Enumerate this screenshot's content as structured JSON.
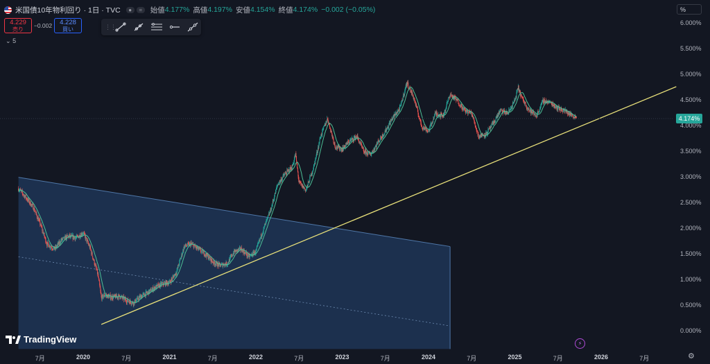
{
  "header": {
    "title": "米国債10年物利回り · 1日 · TVC",
    "open_label": "始値",
    "open_value": "4.177%",
    "high_label": "高値",
    "high_value": "4.197%",
    "low_label": "安値",
    "low_value": "4.154%",
    "close_label": "終値",
    "close_value": "4.174%",
    "change": "−0.002 (−0.05%)"
  },
  "trade": {
    "sell_price": "4.229",
    "sell_label": "売り",
    "spread": "−0.002",
    "buy_price": "4.228",
    "buy_label": "買い"
  },
  "indicators_toggle": "5",
  "toolbar": {
    "tools": [
      "trend-line-icon",
      "ray-icon",
      "parallel-channel-icon",
      "horizontal-ray-icon",
      "extended-line-icon"
    ]
  },
  "axis_menu": "%",
  "current_price_badge": "4.174%",
  "branding": "TradingView",
  "colors": {
    "background": "#131722",
    "candle_up": "#26a69a",
    "candle_down": "#ef5350",
    "moving_average": "#4dbf96",
    "trend_line": "#e8e07a",
    "channel_fill": "#1f3556",
    "channel_edge": "#4f77a8",
    "price_badge": "#26a69a"
  },
  "chart_data": {
    "type": "line",
    "title": "米国債10年物利回り · 1日 · TVC",
    "y_axis": {
      "unit": "%",
      "range": [
        -0.2,
        6.15
      ],
      "ticks": [
        "6.000%",
        "5.500%",
        "5.000%",
        "4.500%",
        "4.000%",
        "3.500%",
        "3.000%",
        "2.500%",
        "2.000%",
        "1.500%",
        "1.000%",
        "0.500%",
        "0.000%"
      ]
    },
    "x_axis": {
      "ticks": [
        "7月",
        "2020",
        "7月",
        "2021",
        "7月",
        "2022",
        "7月",
        "2023",
        "7月",
        "2024",
        "7月",
        "2025",
        "7月",
        "2026",
        "7月"
      ],
      "range": [
        2019.25,
        2026.9
      ]
    },
    "series": [
      {
        "x": [
          2019.25,
          2019.33,
          2019.42,
          2019.5,
          2019.58,
          2019.67,
          2019.75,
          2019.83,
          2019.92,
          2020.0,
          2020.08,
          2020.17,
          2020.21,
          2020.25,
          2020.33,
          2020.42,
          2020.5,
          2020.58,
          2020.67,
          2020.75,
          2020.83,
          2020.92,
          2021.0,
          2021.08,
          2021.17,
          2021.25,
          2021.33,
          2021.42,
          2021.5,
          2021.58,
          2021.67,
          2021.75,
          2021.83,
          2021.92,
          2022.0,
          2022.08,
          2022.17,
          2022.25,
          2022.33,
          2022.42,
          2022.46,
          2022.5,
          2022.58,
          2022.67,
          2022.75,
          2022.83,
          2022.92,
          2023.0,
          2023.08,
          2023.17,
          2023.25,
          2023.33,
          2023.42,
          2023.5,
          2023.58,
          2023.67,
          2023.75,
          2023.83,
          2023.92,
          2024.0,
          2024.08,
          2024.17,
          2024.25,
          2024.33,
          2024.42,
          2024.5,
          2024.58,
          2024.67,
          2024.75,
          2024.83,
          2024.92,
          2025.0,
          2025.04,
          2025.08,
          2025.17,
          2025.25,
          2025.33,
          2025.42,
          2025.5,
          2025.58,
          2025.67,
          2025.72
        ],
        "y": [
          2.78,
          2.62,
          2.42,
          2.1,
          1.7,
          1.6,
          1.78,
          1.85,
          1.82,
          1.92,
          1.62,
          1.1,
          0.65,
          0.7,
          0.66,
          0.68,
          0.6,
          0.55,
          0.68,
          0.75,
          0.85,
          0.92,
          0.95,
          1.15,
          1.65,
          1.7,
          1.6,
          1.5,
          1.35,
          1.28,
          1.32,
          1.55,
          1.6,
          1.45,
          1.55,
          1.95,
          2.35,
          2.85,
          3.05,
          3.2,
          3.45,
          2.9,
          2.75,
          3.2,
          3.8,
          4.15,
          3.6,
          3.55,
          3.7,
          3.8,
          3.5,
          3.45,
          3.7,
          3.9,
          4.15,
          4.35,
          4.85,
          4.55,
          4.0,
          3.9,
          4.25,
          4.2,
          4.62,
          4.5,
          4.3,
          4.25,
          3.8,
          3.85,
          4.05,
          4.3,
          4.25,
          4.5,
          4.75,
          4.55,
          4.3,
          4.2,
          4.5,
          4.45,
          4.35,
          4.3,
          4.2,
          4.17
        ]
      }
    ],
    "annotations": {
      "trend_line": {
        "x": [
          2020.21,
          2026.87
        ],
        "y": [
          0.13,
          4.77
        ]
      },
      "descending_channel": {
        "upper": {
          "x": [
            2019.25,
            2024.25
          ],
          "y": [
            3.0,
            1.65
          ]
        },
        "median": {
          "x": [
            2019.25,
            2024.25
          ],
          "y": [
            1.45,
            0.1
          ]
        },
        "lower": {
          "x": [
            2019.25,
            2024.25
          ],
          "y": [
            -0.35,
            -0.35
          ]
        }
      }
    },
    "grid": false,
    "legend": "none"
  }
}
